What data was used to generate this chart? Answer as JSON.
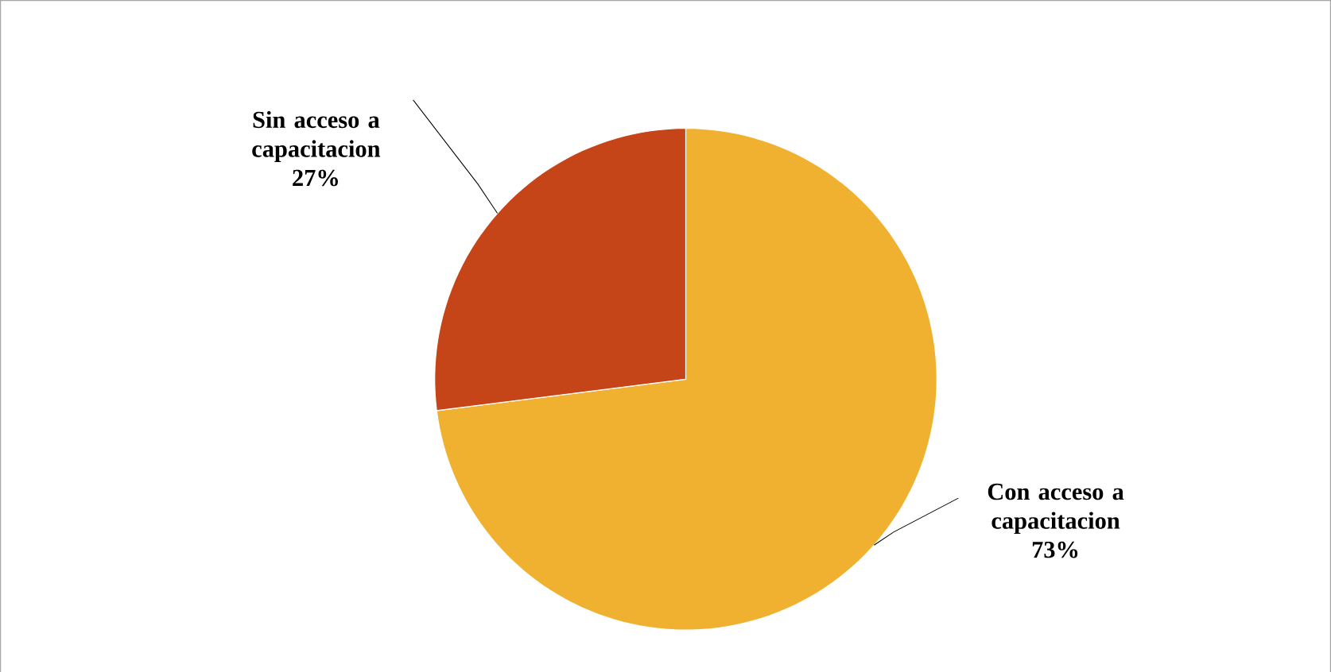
{
  "chart_data": {
    "type": "pie",
    "categories": [
      "Con acceso a capacitacion",
      "Sin acceso a capacitacion"
    ],
    "values": [
      73,
      27
    ],
    "value_labels": [
      "73%",
      "27%"
    ],
    "colors": [
      "#f0b030",
      "#c64518"
    ]
  }
}
